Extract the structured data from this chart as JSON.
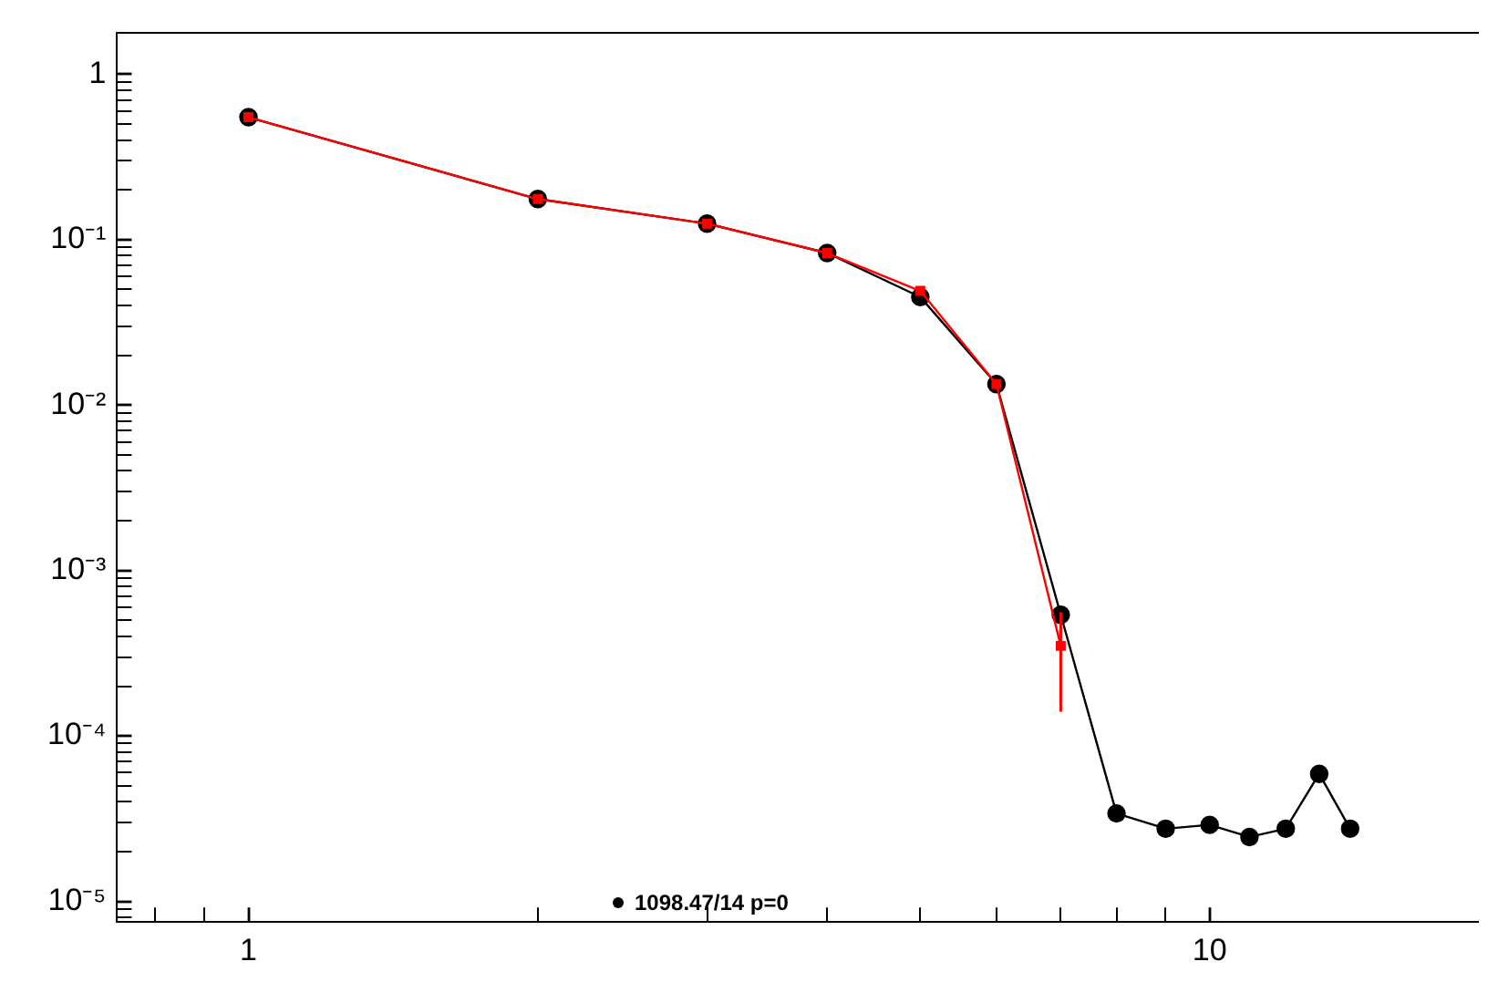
{
  "chart_data": {
    "type": "line",
    "log": "xy",
    "grid": false,
    "legend": false,
    "x": [
      1,
      2,
      3,
      4,
      5,
      6,
      7,
      8,
      9,
      10,
      11,
      12,
      13,
      14
    ],
    "series": [
      {
        "color": "#000000",
        "marker": "circle",
        "values": [
          0.55,
          0.176,
          0.125,
          0.083,
          0.045,
          0.0134,
          0.00054,
          3.4e-05,
          2.75e-05,
          2.9e-05,
          2.45e-05,
          2.75e-05,
          5.9e-05,
          2.75e-05
        ]
      },
      {
        "color": "#ff0000",
        "marker": "square",
        "x": [
          1,
          2,
          3,
          4,
          5,
          6,
          7
        ],
        "values": [
          0.55,
          0.176,
          0.125,
          0.083,
          0.049,
          0.0134,
          0.00035
        ],
        "errors": [
          null,
          null,
          null,
          null,
          null,
          null,
          0.00021
        ]
      }
    ],
    "xlim": [
      0.73,
      19
    ],
    "ylim": [
      7.5e-06,
      1.78
    ],
    "xticks": [
      {
        "value": 0.8,
        "label": null
      },
      {
        "value": 0.9,
        "label": null
      },
      1,
      {
        "value": 2,
        "label": null
      },
      {
        "value": 3,
        "label": null
      },
      {
        "value": 4,
        "label": null
      },
      {
        "value": 5,
        "label": null
      },
      {
        "value": 6,
        "label": null
      },
      {
        "value": 7,
        "label": null
      },
      {
        "value": 8,
        "label": null
      },
      {
        "value": 9,
        "label": null
      },
      10
    ],
    "yticks": [
      {
        "value": 8e-06,
        "label": null
      },
      {
        "value": 9e-06,
        "label": null
      },
      {
        "value": 1e-05,
        "label": "10⁻⁵"
      },
      {
        "value": 2e-05,
        "label": null
      },
      {
        "value": 3e-05,
        "label": null
      },
      {
        "value": 4e-05,
        "label": null
      },
      {
        "value": 5e-05,
        "label": null
      },
      {
        "value": 6e-05,
        "label": null
      },
      {
        "value": 7e-05,
        "label": null
      },
      {
        "value": 8e-05,
        "label": null
      },
      {
        "value": 9e-05,
        "label": null
      },
      {
        "value": 0.0001,
        "label": "10⁻⁴"
      },
      {
        "value": 0.0002,
        "label": null
      },
      {
        "value": 0.0003,
        "label": null
      },
      {
        "value": 0.0004,
        "label": null
      },
      {
        "value": 0.0005,
        "label": null
      },
      {
        "value": 0.0006,
        "label": null
      },
      {
        "value": 0.0007,
        "label": null
      },
      {
        "value": 0.0008,
        "label": null
      },
      {
        "value": 0.0009,
        "label": null
      },
      {
        "value": 0.001,
        "label": "10⁻³"
      },
      {
        "value": 0.002,
        "label": null
      },
      {
        "value": 0.003,
        "label": null
      },
      {
        "value": 0.004,
        "label": null
      },
      {
        "value": 0.005,
        "label": null
      },
      {
        "value": 0.006,
        "label": null
      },
      {
        "value": 0.007,
        "label": null
      },
      {
        "value": 0.008,
        "label": null
      },
      {
        "value": 0.009,
        "label": null
      },
      {
        "value": 0.01,
        "label": "10⁻²"
      },
      {
        "value": 0.02,
        "label": null
      },
      {
        "value": 0.03,
        "label": null
      },
      {
        "value": 0.04,
        "label": null
      },
      {
        "value": 0.05,
        "label": null
      },
      {
        "value": 0.06,
        "label": null
      },
      {
        "value": 0.07,
        "label": null
      },
      {
        "value": 0.08,
        "label": null
      },
      {
        "value": 0.09,
        "label": null
      },
      {
        "value": 0.1,
        "label": "10⁻¹"
      },
      {
        "value": 0.2,
        "label": null
      },
      {
        "value": 0.3,
        "label": null
      },
      {
        "value": 0.4,
        "label": null
      },
      {
        "value": 0.5,
        "label": null
      },
      {
        "value": 0.6,
        "label": null
      },
      {
        "value": 0.7,
        "label": null
      },
      {
        "value": 0.8,
        "label": null
      },
      {
        "value": 0.9,
        "label": null
      },
      1
    ],
    "annotations": [
      "1098.47/14 p=0"
    ]
  }
}
